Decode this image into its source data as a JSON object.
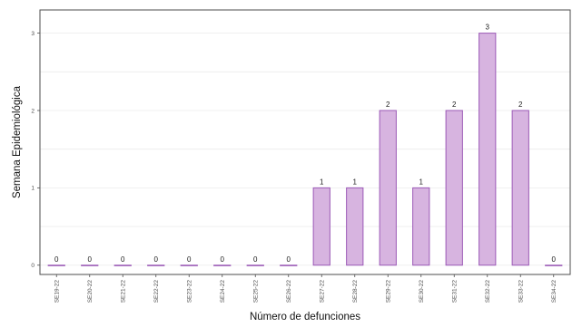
{
  "chart_data": {
    "type": "bar",
    "xlabel": "Número de defunciones",
    "ylabel": "Semana Epidemiológica",
    "categories": [
      "SE19-22",
      "SE20-22",
      "SE21-22",
      "SE22-22",
      "SE23-22",
      "SE24-22",
      "SE25-22",
      "SE26-22",
      "SE27-22",
      "SE28-22",
      "SE29-22",
      "SE30-22",
      "SE31-22",
      "SE32-22",
      "SE33-22",
      "SE34-22"
    ],
    "values": [
      0,
      0,
      0,
      0,
      0,
      0,
      0,
      0,
      1,
      1,
      2,
      1,
      2,
      3,
      2,
      0
    ],
    "data_labels": [
      "0",
      "0",
      "0",
      "0",
      "0",
      "0",
      "0",
      "0",
      "1",
      "1",
      "2",
      "1",
      "2",
      "3",
      "2",
      "0"
    ],
    "y_ticks": [
      "0",
      "1",
      "2",
      "3"
    ],
    "ylim": [
      -0.12,
      3.3
    ],
    "grid": true,
    "legend": "none",
    "colors": {
      "bar_fill": "#d7b4e0",
      "bar_stroke": "#9b59b6",
      "grid": "#ececec",
      "frame": "#4d4d4d"
    }
  }
}
